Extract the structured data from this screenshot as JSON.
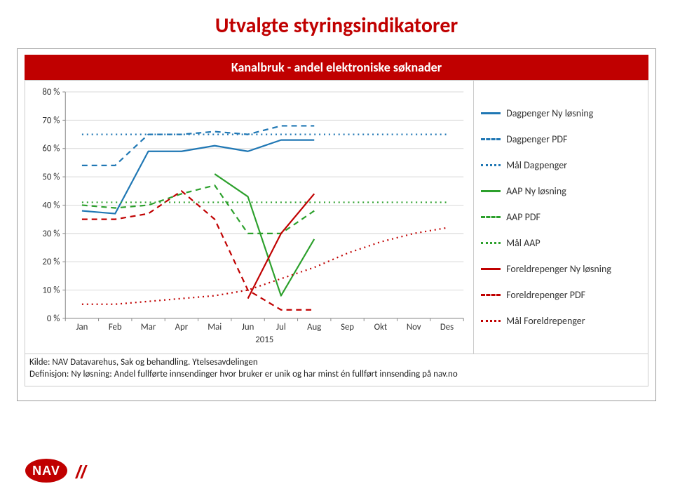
{
  "page_title": "Utvalgte styringsindikatorer",
  "chart": {
    "title": "Kanalbruk - andel elektroniske søknader",
    "type": "line",
    "categories": [
      "Jan",
      "Feb",
      "Mar",
      "Apr",
      "Mai",
      "Jun",
      "Jul",
      "Aug",
      "Sep",
      "Okt",
      "Nov",
      "Des"
    ],
    "x_axis_title": "2015",
    "ylim": [
      0,
      80
    ],
    "ytick_step": 10,
    "ytick_labels": [
      "0 %",
      "10 %",
      "20 %",
      "30 %",
      "40 %",
      "50 %",
      "60 %",
      "70 %",
      "80 %"
    ],
    "background_color": "#ffffff",
    "grid_color": "#d9d9d9",
    "axis_color": "#888888",
    "line_width": 2.2,
    "series": [
      {
        "key": "dagpenger_ny",
        "label": "Dagpenger Ny løsning",
        "color": "#1f77b4",
        "style": "solid",
        "values": [
          38,
          37,
          59,
          59,
          61,
          59,
          63,
          63,
          null,
          null,
          null,
          null
        ]
      },
      {
        "key": "dagpenger_pdf",
        "label": "Dagpenger PDF",
        "color": "#1f77b4",
        "style": "dashed",
        "values": [
          54,
          54,
          65,
          65,
          66,
          65,
          68,
          68,
          null,
          null,
          null,
          null
        ]
      },
      {
        "key": "maal_dagpenger",
        "label": "Mål Dagpenger",
        "color": "#1f77b4",
        "style": "dotted",
        "values": [
          65,
          65,
          65,
          65,
          65,
          65,
          65,
          65,
          65,
          65,
          65,
          65
        ]
      },
      {
        "key": "aap_ny",
        "label": "AAP Ny løsning",
        "color": "#2ca02c",
        "style": "solid",
        "values": [
          null,
          null,
          null,
          null,
          51,
          43,
          8,
          28,
          null,
          null,
          null,
          null
        ]
      },
      {
        "key": "aap_pdf",
        "label": "AAP PDF",
        "color": "#2ca02c",
        "style": "dashed",
        "values": [
          40,
          39,
          40,
          44,
          47,
          30,
          30,
          38,
          null,
          null,
          null,
          null
        ]
      },
      {
        "key": "maal_aap",
        "label": "Mål AAP",
        "color": "#2ca02c",
        "style": "dotted",
        "values": [
          41,
          41,
          41,
          41,
          41,
          41,
          41,
          41,
          41,
          41,
          41,
          41
        ]
      },
      {
        "key": "fp_ny",
        "label": "Foreldrepenger Ny løsning",
        "color": "#c00000",
        "style": "solid",
        "values": [
          null,
          null,
          null,
          null,
          null,
          7,
          30,
          44,
          null,
          null,
          null,
          null
        ]
      },
      {
        "key": "fp_pdf",
        "label": "Foreldrepenger PDF",
        "color": "#c00000",
        "style": "dashed",
        "values": [
          35,
          35,
          37,
          45,
          35,
          10,
          3,
          3,
          null,
          null,
          null,
          null
        ]
      },
      {
        "key": "maal_fp",
        "label": "Mål Foreldrepenger",
        "color": "#c00000",
        "style": "dotted",
        "values": [
          5,
          5,
          6,
          7,
          8,
          10,
          14,
          18,
          23,
          27,
          30,
          32
        ]
      }
    ]
  },
  "footnote_line1": "Kilde: NAV Datavarehus, Sak og behandling. Ytelsesavdelingen",
  "footnote_line2": "Definisjon: Ny løsning: Andel fullførte innsendinger hvor bruker er unik og har minst én fullført innsending på nav.no",
  "logo": {
    "text": "NAV",
    "bg": "#c00000",
    "fg": "#ffffff",
    "slashes": "#c00000"
  }
}
